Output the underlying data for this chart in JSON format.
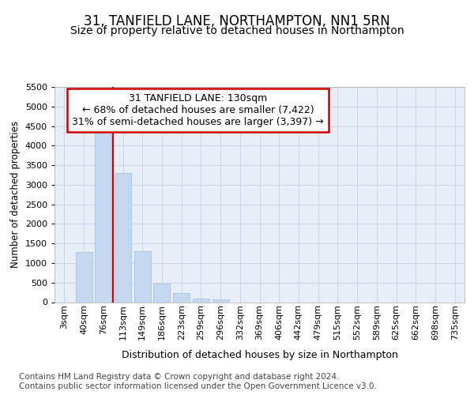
{
  "title": "31, TANFIELD LANE, NORTHAMPTON, NN1 5RN",
  "subtitle": "Size of property relative to detached houses in Northampton",
  "xlabel": "Distribution of detached houses by size in Northampton",
  "ylabel": "Number of detached properties",
  "categories": [
    "3sqm",
    "40sqm",
    "76sqm",
    "113sqm",
    "149sqm",
    "186sqm",
    "223sqm",
    "259sqm",
    "296sqm",
    "332sqm",
    "369sqm",
    "406sqm",
    "442sqm",
    "479sqm",
    "515sqm",
    "552sqm",
    "589sqm",
    "625sqm",
    "662sqm",
    "698sqm",
    "735sqm"
  ],
  "values": [
    0,
    1280,
    4350,
    3300,
    1300,
    480,
    240,
    100,
    70,
    0,
    0,
    0,
    0,
    0,
    0,
    0,
    0,
    0,
    0,
    0,
    0
  ],
  "bar_color": "#c5d8ef",
  "bar_edge_color": "#a8c4e0",
  "vline_x": 3.0,
  "vline_color": "#cc0000",
  "annotation_text": "31 TANFIELD LANE: 130sqm\n← 68% of detached houses are smaller (7,422)\n31% of semi-detached houses are larger (3,397) →",
  "annotation_box_color": "#ffffff",
  "annotation_box_edge_color": "#cc0000",
  "ylim": [
    0,
    5500
  ],
  "yticks": [
    0,
    500,
    1000,
    1500,
    2000,
    2500,
    3000,
    3500,
    4000,
    4500,
    5000,
    5500
  ],
  "footer_text": "Contains HM Land Registry data © Crown copyright and database right 2024.\nContains public sector information licensed under the Open Government Licence v3.0.",
  "bg_color": "#ffffff",
  "plot_bg_color": "#e8eef8",
  "grid_color": "#c8d0e0",
  "title_fontsize": 12,
  "subtitle_fontsize": 10,
  "xlabel_fontsize": 9,
  "ylabel_fontsize": 8.5,
  "tick_fontsize": 8,
  "footer_fontsize": 7.5,
  "annotation_fontsize": 9
}
